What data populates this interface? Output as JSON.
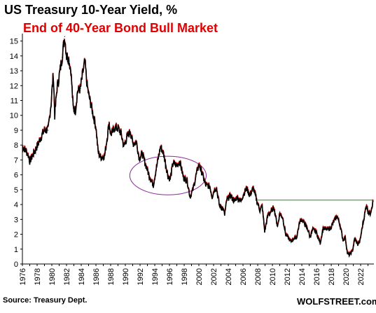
{
  "chart_data": {
    "type": "line",
    "title": "US Treasury 10-Year Yield, %",
    "subtitle": "End of 40-Year Bond Bull Market",
    "xlabel": "",
    "ylabel": "",
    "xlim": [
      1976,
      2023.8
    ],
    "ylim": [
      0,
      15.5
    ],
    "yticks": [
      0,
      1,
      2,
      3,
      4,
      5,
      6,
      7,
      8,
      9,
      10,
      11,
      12,
      13,
      14,
      15
    ],
    "xticks": [
      "1976",
      "1978",
      "1980",
      "1982",
      "1984",
      "1986",
      "1988",
      "1990",
      "1992",
      "1994",
      "1996",
      "1998",
      "2000",
      "2002",
      "2004",
      "2006",
      "2008",
      "2010",
      "2012",
      "2014",
      "2016",
      "2018",
      "2020",
      "2022"
    ],
    "grid": false,
    "legend": "none",
    "series": [
      {
        "values": [
          [
            1976.0,
            7.9
          ],
          [
            1976.5,
            7.6
          ],
          [
            1976.8,
            7.3
          ],
          [
            1977.0,
            6.9
          ],
          [
            1977.5,
            7.4
          ],
          [
            1978.0,
            7.9
          ],
          [
            1978.5,
            8.5
          ],
          [
            1979.0,
            9.0
          ],
          [
            1979.5,
            9.0
          ],
          [
            1979.9,
            10.8
          ],
          [
            1980.2,
            12.8
          ],
          [
            1980.4,
            10.0
          ],
          [
            1980.7,
            11.8
          ],
          [
            1981.0,
            12.6
          ],
          [
            1981.4,
            13.9
          ],
          [
            1981.75,
            15.3
          ],
          [
            1982.0,
            14.0
          ],
          [
            1982.3,
            13.8
          ],
          [
            1982.6,
            13.0
          ],
          [
            1982.9,
            10.5
          ],
          [
            1983.2,
            10.3
          ],
          [
            1983.5,
            11.6
          ],
          [
            1983.9,
            11.8
          ],
          [
            1984.2,
            12.8
          ],
          [
            1984.5,
            13.6
          ],
          [
            1984.8,
            12.0
          ],
          [
            1985.0,
            11.4
          ],
          [
            1985.5,
            10.3
          ],
          [
            1986.0,
            9.2
          ],
          [
            1986.3,
            7.5
          ],
          [
            1986.6,
            7.2
          ],
          [
            1986.9,
            7.2
          ],
          [
            1987.2,
            7.3
          ],
          [
            1987.5,
            8.4
          ],
          [
            1987.8,
            9.5
          ],
          [
            1988.0,
            8.7
          ],
          [
            1988.3,
            8.9
          ],
          [
            1988.6,
            9.2
          ],
          [
            1989.0,
            9.1
          ],
          [
            1989.4,
            8.8
          ],
          [
            1989.8,
            7.9
          ],
          [
            1990.3,
            8.6
          ],
          [
            1990.7,
            8.9
          ],
          [
            1991.0,
            8.1
          ],
          [
            1991.5,
            8.2
          ],
          [
            1991.9,
            7.1
          ],
          [
            1992.3,
            7.4
          ],
          [
            1992.8,
            6.6
          ],
          [
            1993.2,
            6.0
          ],
          [
            1993.8,
            5.3
          ],
          [
            1994.2,
            6.4
          ],
          [
            1994.8,
            7.9
          ],
          [
            1995.2,
            7.4
          ],
          [
            1995.8,
            5.9
          ],
          [
            1996.1,
            5.7
          ],
          [
            1996.5,
            6.8
          ],
          [
            1997.0,
            6.6
          ],
          [
            1997.4,
            6.9
          ],
          [
            1997.9,
            5.8
          ],
          [
            1998.4,
            5.6
          ],
          [
            1998.8,
            4.5
          ],
          [
            1999.2,
            5.0
          ],
          [
            1999.6,
            5.9
          ],
          [
            2000.0,
            6.7
          ],
          [
            2000.5,
            6.0
          ],
          [
            2000.9,
            5.3
          ],
          [
            2001.5,
            5.2
          ],
          [
            2001.8,
            4.5
          ],
          [
            2002.1,
            5.0
          ],
          [
            2002.4,
            5.1
          ],
          [
            2002.8,
            3.9
          ],
          [
            2003.3,
            3.7
          ],
          [
            2003.5,
            3.3
          ],
          [
            2003.8,
            4.3
          ],
          [
            2004.3,
            4.6
          ],
          [
            2004.8,
            4.2
          ],
          [
            2005.2,
            4.5
          ],
          [
            2005.7,
            4.2
          ],
          [
            2006.0,
            4.6
          ],
          [
            2006.5,
            5.1
          ],
          [
            2006.9,
            4.6
          ],
          [
            2007.4,
            5.1
          ],
          [
            2007.9,
            4.2
          ],
          [
            2008.3,
            3.6
          ],
          [
            2008.6,
            3.9
          ],
          [
            2008.95,
            2.2
          ],
          [
            2009.4,
            3.3
          ],
          [
            2009.8,
            3.5
          ],
          [
            2010.2,
            3.8
          ],
          [
            2010.7,
            2.5
          ],
          [
            2011.0,
            3.4
          ],
          [
            2011.4,
            3.1
          ],
          [
            2011.8,
            2.0
          ],
          [
            2012.5,
            1.5
          ],
          [
            2012.9,
            1.7
          ],
          [
            2013.3,
            1.8
          ],
          [
            2013.7,
            2.8
          ],
          [
            2013.95,
            3.0
          ],
          [
            2014.5,
            2.6
          ],
          [
            2014.9,
            2.2
          ],
          [
            2015.1,
            1.8
          ],
          [
            2015.5,
            2.3
          ],
          [
            2015.9,
            2.2
          ],
          [
            2016.5,
            1.4
          ],
          [
            2016.9,
            2.4
          ],
          [
            2017.3,
            2.3
          ],
          [
            2017.9,
            2.4
          ],
          [
            2018.4,
            2.9
          ],
          [
            2018.8,
            3.2
          ],
          [
            2019.2,
            2.6
          ],
          [
            2019.6,
            1.6
          ],
          [
            2019.9,
            1.8
          ],
          [
            2020.2,
            0.7
          ],
          [
            2020.5,
            0.6
          ],
          [
            2020.9,
            0.9
          ],
          [
            2021.2,
            1.7
          ],
          [
            2021.6,
            1.3
          ],
          [
            2021.9,
            1.5
          ],
          [
            2022.2,
            2.4
          ],
          [
            2022.5,
            3.2
          ],
          [
            2022.8,
            4.0
          ],
          [
            2023.0,
            3.5
          ],
          [
            2023.3,
            3.4
          ],
          [
            2023.5,
            3.8
          ],
          [
            2023.7,
            4.2
          ]
        ]
      }
    ],
    "annotations": [
      {
        "type": "horizontal-line",
        "y": 4.3,
        "x_start": 2008.0,
        "x_end": 2023.8,
        "color": "#1a8f1a"
      },
      {
        "type": "ellipse",
        "x_center": 1995.8,
        "y_center": 5.95,
        "x_radius": 5.2,
        "y_radius": 1.3,
        "color": "#8a2a9a"
      }
    ],
    "colors": {
      "line": "#000000",
      "shadow": "#e00000"
    }
  },
  "source_note": "Source: Treasury Dept.",
  "brand": "WOLFSTREET.com"
}
